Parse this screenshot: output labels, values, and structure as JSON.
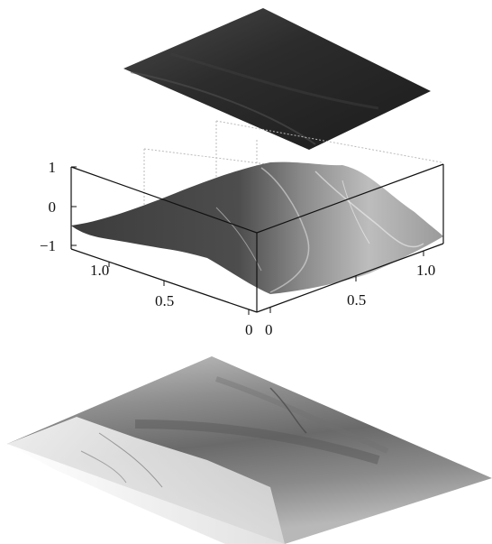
{
  "figure": {
    "z_axis_ticks": [
      "1",
      "0",
      "−1"
    ],
    "x_axis_ticks": [
      "0",
      "0.5",
      "1.0"
    ],
    "y_axis_ticks": [
      "0",
      "0.5",
      "1.0"
    ]
  },
  "colors": {
    "background": "#ffffff",
    "dark_surface": "#2e2e2e",
    "terrain_dark": "#3a3a3a",
    "terrain_light": "#d8d8d8",
    "box_lines": "#111111",
    "grid_lines": "#bbbbbb"
  }
}
